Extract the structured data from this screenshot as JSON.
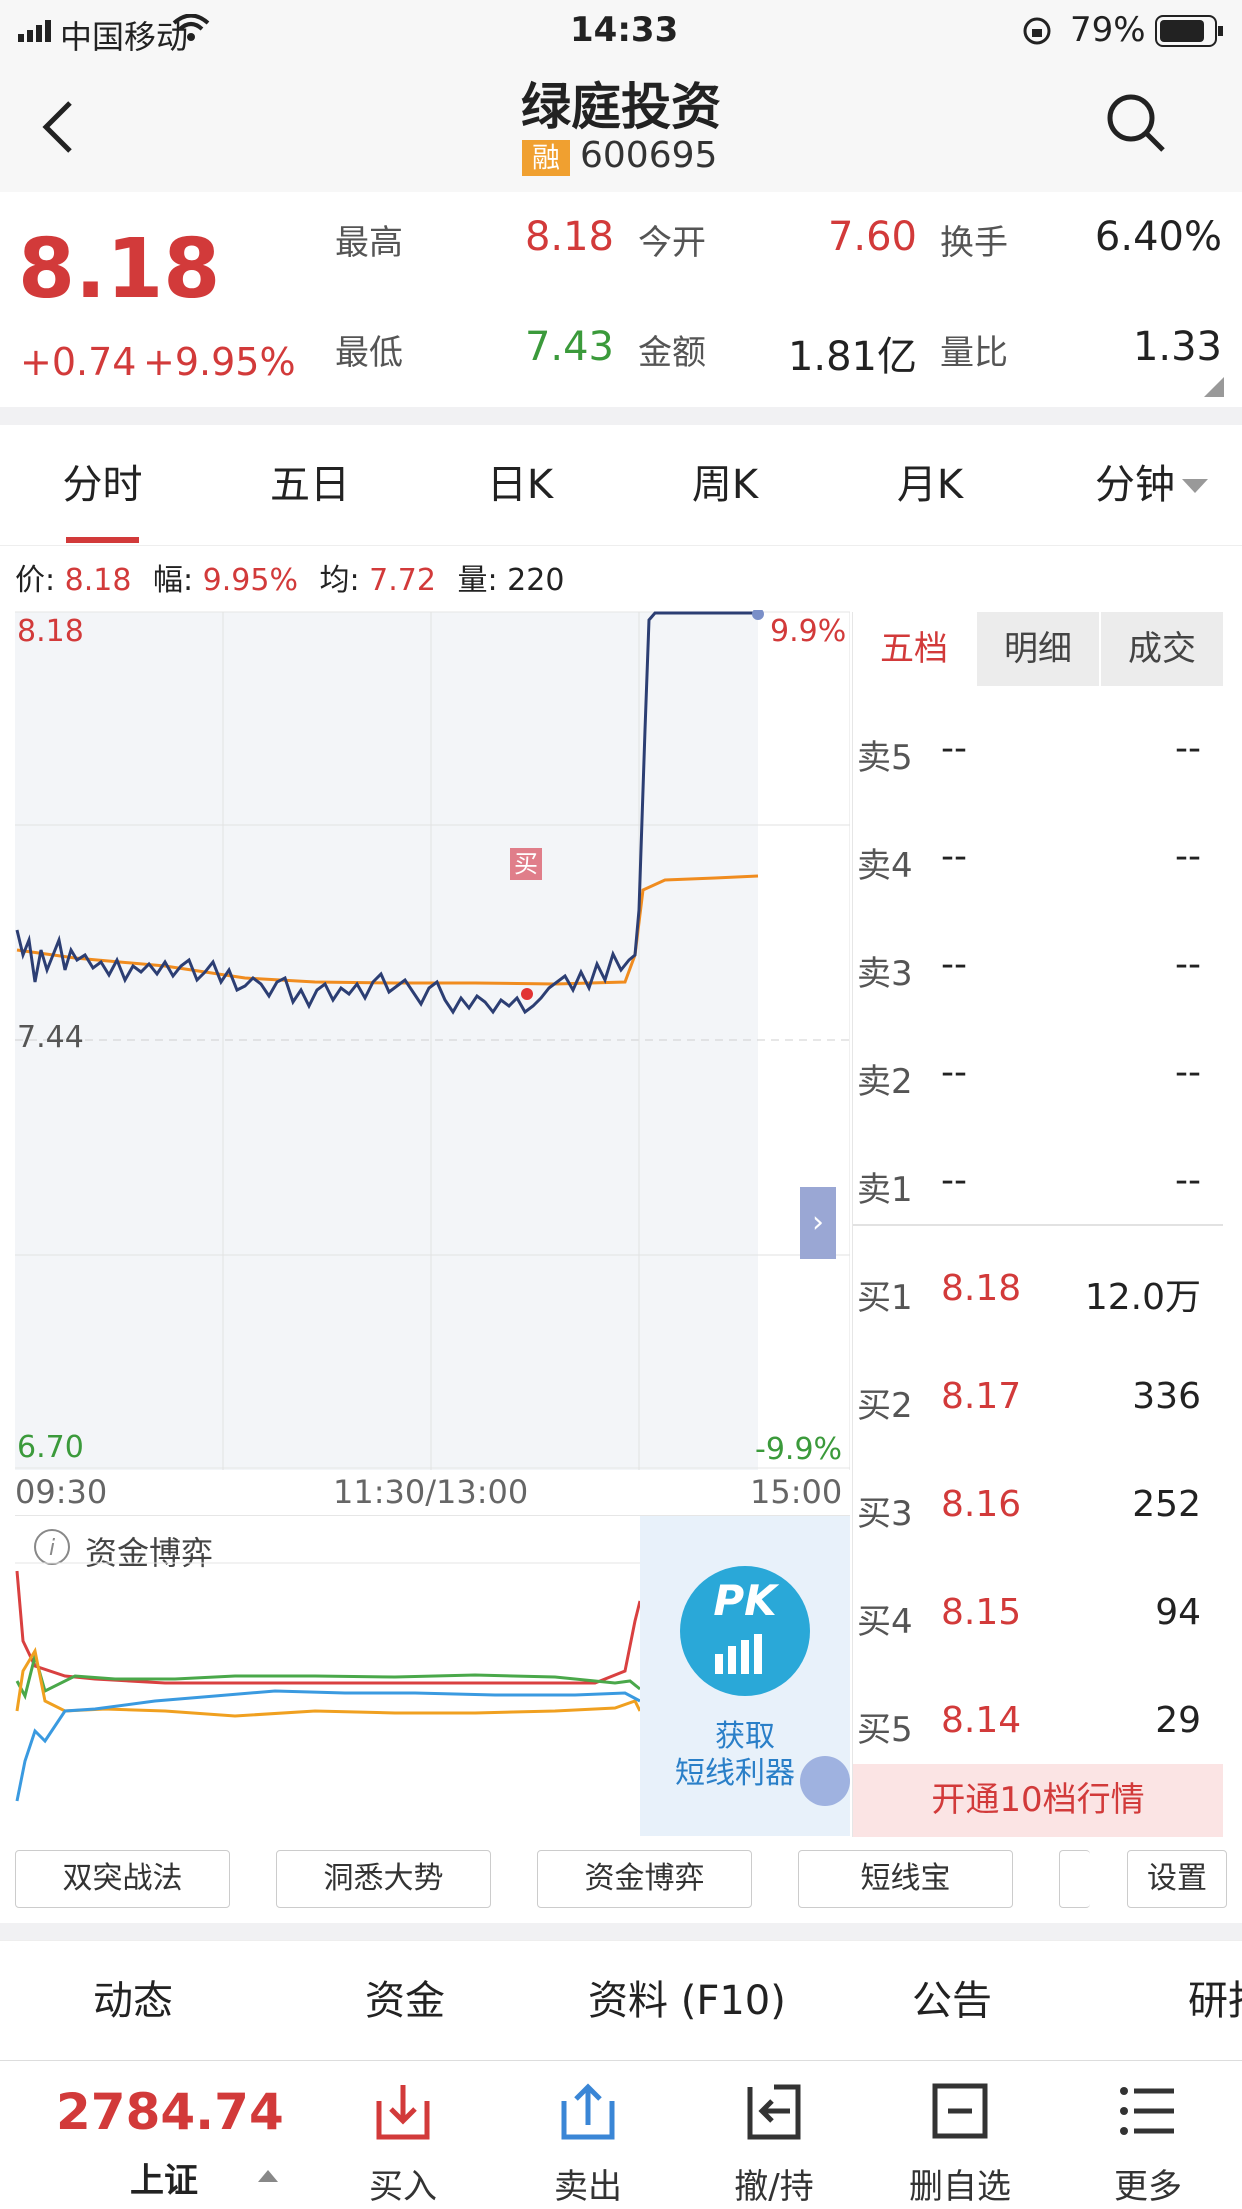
{
  "status_bar": {
    "carrier": "中国移动",
    "time": "14:33",
    "battery": "79%"
  },
  "header": {
    "title": "绿庭投资",
    "badge": "融",
    "code": "600695"
  },
  "quote": {
    "price": "8.18",
    "change": "+0.74",
    "change_pct": "+9.95%",
    "stats": [
      {
        "label": "最高",
        "value": "8.18"
      },
      {
        "label": "今开",
        "value": "7.60"
      },
      {
        "label": "换手",
        "value": "6.40%"
      },
      {
        "label": "最低",
        "value": "7.43"
      },
      {
        "label": "金额",
        "value": "1.81亿"
      },
      {
        "label": "量比",
        "value": "1.33"
      }
    ]
  },
  "chart_tabs": [
    "分时",
    "五日",
    "日K",
    "周K",
    "月K",
    "分钟"
  ],
  "info_line": {
    "price_label": "价:",
    "price": "8.18",
    "range_label": "幅:",
    "range": "9.95%",
    "avg_label": "均:",
    "avg": "7.72",
    "vol_label": "量:",
    "vol": "220"
  },
  "chart_labels": {
    "y_top": "8.18",
    "y_mid": "7.44",
    "y_bottom": "6.70",
    "pct_top": "9.9%",
    "pct_bottom": "-9.9%",
    "x_start": "09:30",
    "x_mid": "11:30/13:00",
    "x_end": "15:00",
    "buy_marker": "买"
  },
  "chart_data": {
    "type": "line",
    "ylim": [
      6.7,
      8.18
    ],
    "x_ticks": [
      "09:30",
      "11:30/13:00",
      "15:00"
    ],
    "series": [
      {
        "x": [
          0,
          20,
          40,
          60,
          80,
          100,
          120,
          140,
          160,
          170,
          180,
          190,
          200
        ],
        "values": [
          7.59,
          7.57,
          7.56,
          7.54,
          7.53,
          7.53,
          7.52,
          7.49,
          7.47,
          7.5,
          7.58,
          7.6,
          8.18
        ]
      },
      {
        "x": [
          0,
          20,
          40,
          60,
          80,
          100,
          120,
          140,
          160,
          170,
          180,
          190,
          200,
          240
        ],
        "values": [
          7.58,
          7.58,
          7.57,
          7.56,
          7.56,
          7.55,
          7.55,
          7.55,
          7.55,
          7.55,
          7.55,
          7.56,
          7.7,
          7.72
        ]
      }
    ]
  },
  "capital_flow": {
    "title": "资金博弈",
    "promo_text1": "获取",
    "promo_text2": "短线利器",
    "promo_badge": "PK"
  },
  "orderbook": {
    "tabs": [
      "五档",
      "明细",
      "成交"
    ],
    "sells": [
      {
        "label": "卖5",
        "price": "--",
        "vol": "--"
      },
      {
        "label": "卖4",
        "price": "--",
        "vol": "--"
      },
      {
        "label": "卖3",
        "price": "--",
        "vol": "--"
      },
      {
        "label": "卖2",
        "price": "--",
        "vol": "--"
      },
      {
        "label": "卖1",
        "price": "--",
        "vol": "--"
      }
    ],
    "buys": [
      {
        "label": "买1",
        "price": "8.18",
        "vol": "12.0万"
      },
      {
        "label": "买2",
        "price": "8.17",
        "vol": "336"
      },
      {
        "label": "买3",
        "price": "8.16",
        "vol": "252"
      },
      {
        "label": "买4",
        "price": "8.15",
        "vol": "94"
      },
      {
        "label": "买5",
        "price": "8.14",
        "vol": "29"
      }
    ],
    "upgrade": "开通10档行情"
  },
  "indicator_buttons": [
    "双突战法",
    "洞悉大势",
    "资金博弈",
    "短线宝",
    "设置"
  ],
  "bottom_tabs": [
    "动态",
    "资金",
    "资料 (F10)",
    "公告",
    "研报"
  ],
  "toolbar": {
    "index_value": "2784.74",
    "index_name": "上证",
    "buttons": [
      "买入",
      "卖出",
      "撤/持",
      "删自选",
      "更多"
    ]
  }
}
